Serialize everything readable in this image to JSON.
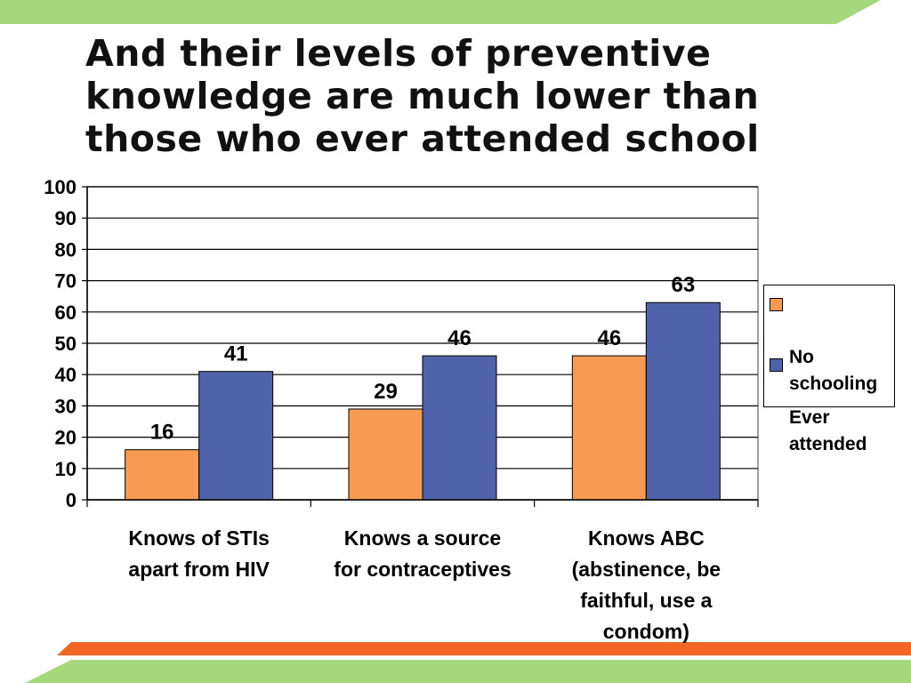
{
  "slide": {
    "title": "And their levels of preventive knowledge are much lower than those who ever attended school"
  },
  "colors": {
    "top_band": "#A4D87A",
    "bottom_band": "#A4D87A",
    "orange_stripe": "#F26522",
    "series_no_schooling": "#F79A52",
    "series_ever_attended": "#5063AA"
  },
  "chart_data": {
    "type": "bar",
    "title": "",
    "xlabel": "",
    "ylabel": "",
    "ylim": [
      0,
      100
    ],
    "yticks": [
      "0",
      "10",
      "20",
      "30",
      "40",
      "50",
      "60",
      "70",
      "80",
      "90",
      "100"
    ],
    "grid": true,
    "legend_position": "right",
    "categories": [
      "Knows of STIs apart from HIV",
      "Knows a source for contraceptives",
      "Knows ABC (abstinence, be faithful, use a condom)"
    ],
    "category_lines": [
      "Knows of STIs\napart from HIV",
      "Knows a source\nfor contraceptives",
      "Knows ABC\n(abstinence, be\nfaithful, use a\ncondom)"
    ],
    "series": [
      {
        "name": "No schooling",
        "legend_text": "No\nschooling",
        "values": [
          16,
          29,
          46
        ]
      },
      {
        "name": "Ever attended",
        "legend_text": "Ever\nattended",
        "values": [
          41,
          46,
          63
        ]
      }
    ]
  }
}
